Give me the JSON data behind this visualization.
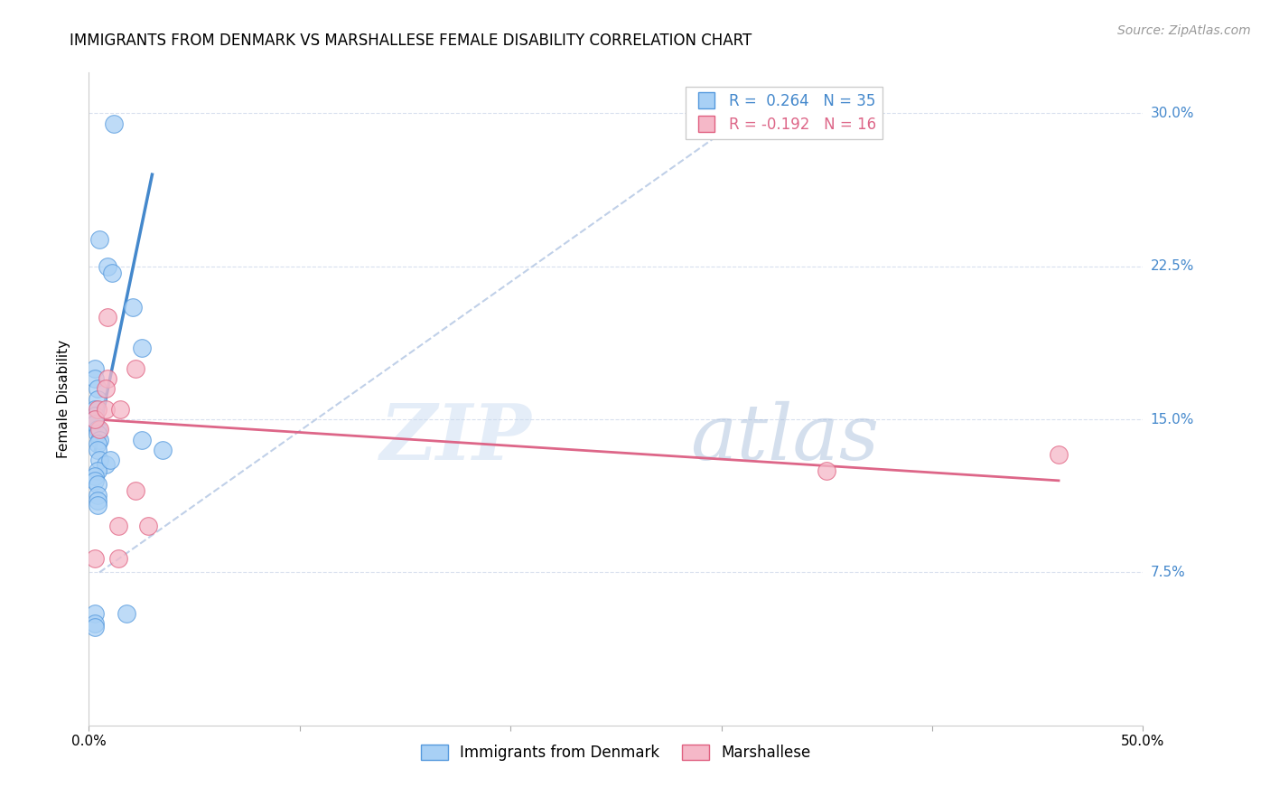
{
  "title": "IMMIGRANTS FROM DENMARK VS MARSHALLESE FEMALE DISABILITY CORRELATION CHART",
  "source": "Source: ZipAtlas.com",
  "ylabel": "Female Disability",
  "xlim": [
    0.0,
    0.5
  ],
  "ylim": [
    0.0,
    0.32
  ],
  "xtick_values": [
    0.0,
    0.1,
    0.2,
    0.3,
    0.4,
    0.5
  ],
  "xtick_labels": [
    "0.0%",
    "",
    "",
    "",
    "",
    "50.0%"
  ],
  "ytick_values": [
    0.075,
    0.15,
    0.225,
    0.3
  ],
  "ytick_labels": [
    "7.5%",
    "15.0%",
    "22.5%",
    "30.0%"
  ],
  "watermark_zip": "ZIP",
  "watermark_atlas": "atlas",
  "blue_color": "#A8D0F5",
  "pink_color": "#F5B8C8",
  "blue_edge_color": "#5599DD",
  "pink_edge_color": "#E06080",
  "blue_line_color": "#4488CC",
  "pink_line_color": "#DD6688",
  "dashed_line_color": "#C0D0E8",
  "blue_scatter_x": [
    0.012,
    0.005,
    0.009,
    0.011,
    0.021,
    0.025,
    0.003,
    0.003,
    0.004,
    0.004,
    0.003,
    0.003,
    0.003,
    0.003,
    0.004,
    0.004,
    0.005,
    0.004,
    0.004,
    0.005,
    0.008,
    0.025,
    0.035,
    0.004,
    0.003,
    0.003,
    0.004,
    0.004,
    0.004,
    0.004,
    0.01,
    0.018,
    0.003,
    0.003,
    0.003
  ],
  "blue_scatter_y": [
    0.295,
    0.238,
    0.225,
    0.222,
    0.205,
    0.185,
    0.175,
    0.17,
    0.165,
    0.16,
    0.155,
    0.152,
    0.15,
    0.148,
    0.145,
    0.143,
    0.14,
    0.138,
    0.135,
    0.13,
    0.128,
    0.14,
    0.135,
    0.125,
    0.122,
    0.12,
    0.118,
    0.113,
    0.11,
    0.108,
    0.13,
    0.055,
    0.055,
    0.05,
    0.048
  ],
  "pink_scatter_x": [
    0.003,
    0.014,
    0.005,
    0.004,
    0.009,
    0.022,
    0.003,
    0.008,
    0.008,
    0.015,
    0.022,
    0.028,
    0.014,
    0.009,
    0.35,
    0.46
  ],
  "pink_scatter_y": [
    0.082,
    0.082,
    0.145,
    0.155,
    0.17,
    0.175,
    0.15,
    0.165,
    0.155,
    0.155,
    0.115,
    0.098,
    0.098,
    0.2,
    0.125,
    0.133
  ],
  "blue_trend_x": [
    0.003,
    0.03
  ],
  "blue_trend_y": [
    0.135,
    0.27
  ],
  "pink_trend_x": [
    0.003,
    0.46
  ],
  "pink_trend_y": [
    0.15,
    0.12
  ],
  "dashed_line_x": [
    0.005,
    0.32
  ],
  "dashed_line_y": [
    0.075,
    0.305
  ],
  "title_fontsize": 12,
  "axis_label_fontsize": 11,
  "tick_fontsize": 11,
  "source_fontsize": 10,
  "grid_color": "#D8E0EE",
  "background_color": "#FFFFFF",
  "right_label_color": "#4488CC",
  "legend_r_blue": "R =  0.264",
  "legend_n_blue": "N = 35",
  "legend_r_pink": "R = -0.192",
  "legend_n_pink": "N = 16"
}
